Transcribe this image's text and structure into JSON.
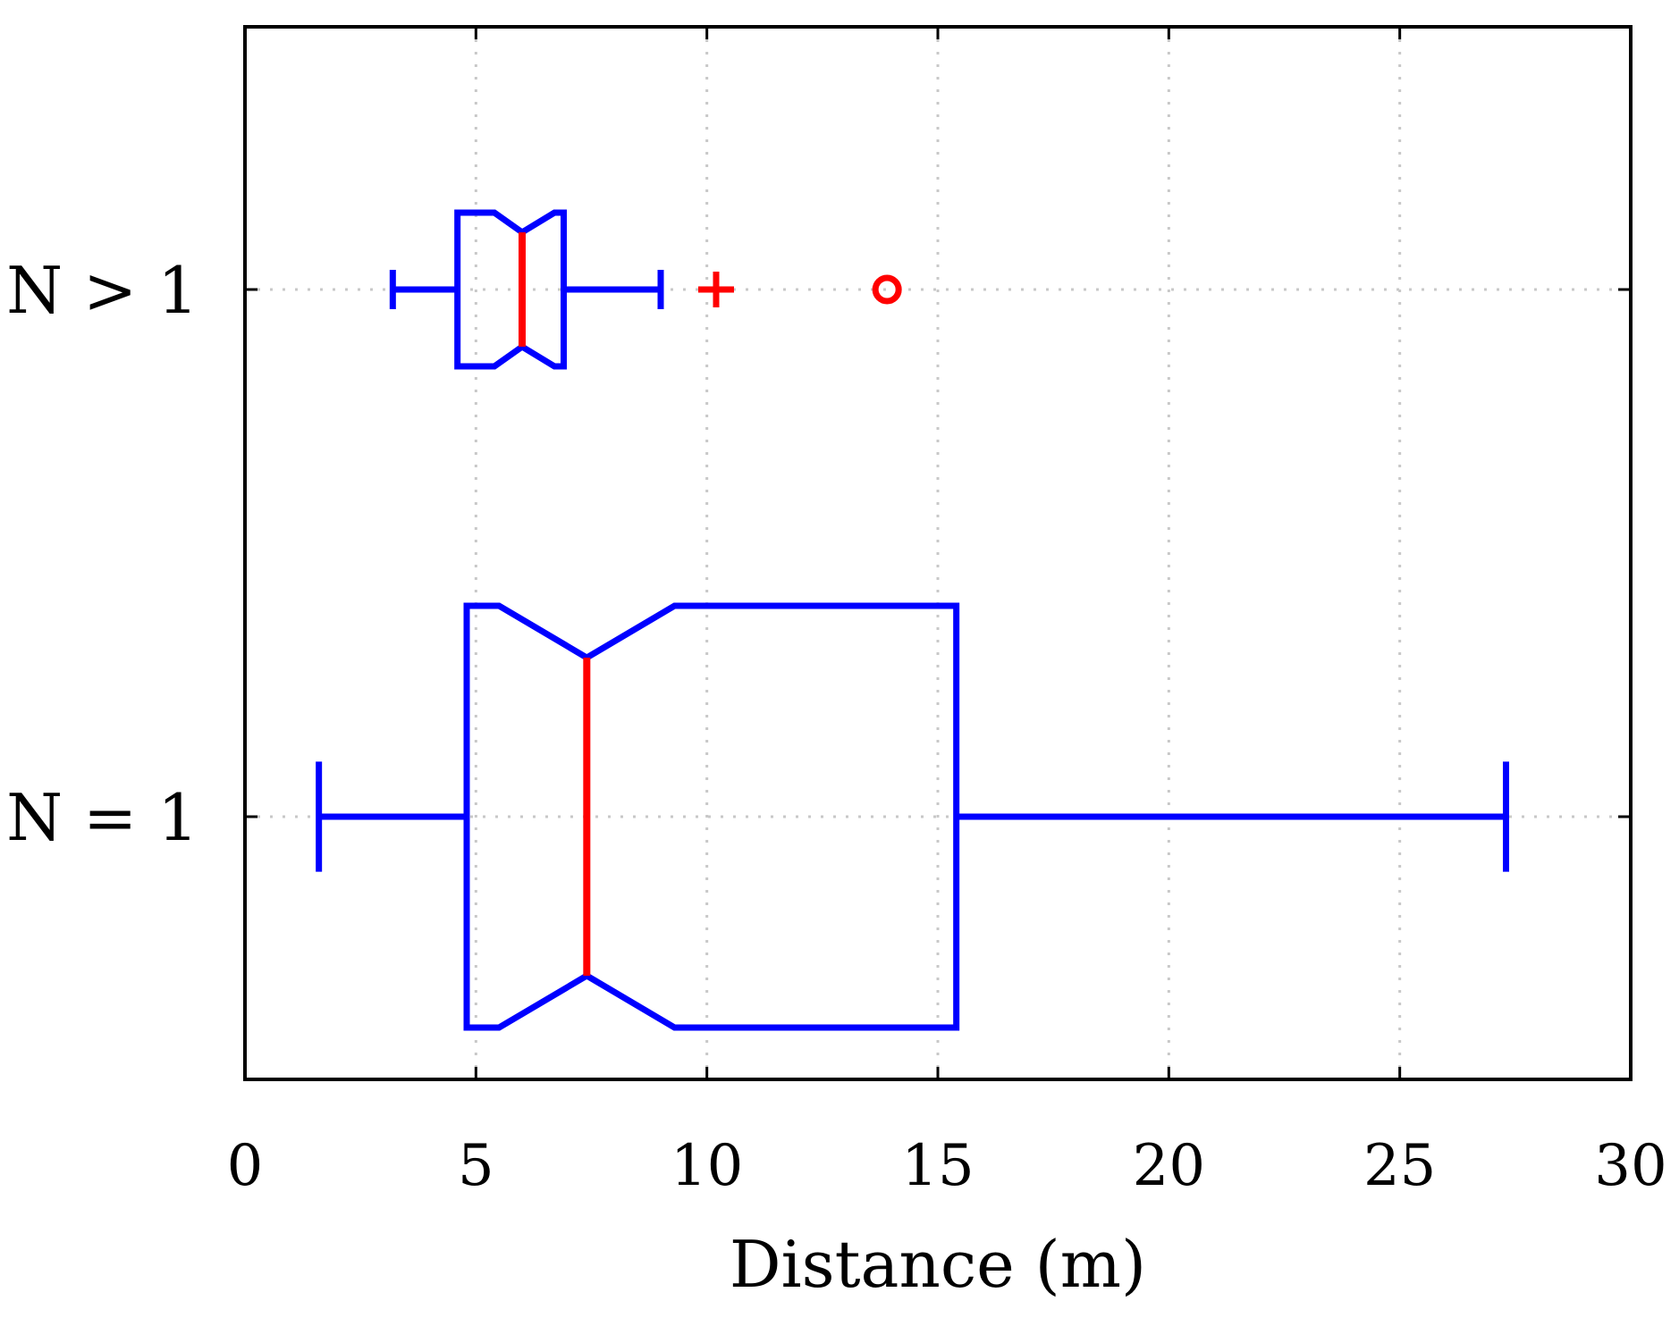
{
  "chart_data": {
    "type": "boxplot",
    "orientation": "horizontal",
    "title": "",
    "xlabel": "Distance (m)",
    "ylabel": "",
    "xlim": [
      0,
      30
    ],
    "xticks": [
      "0",
      "5",
      "10",
      "15",
      "20",
      "25",
      "30"
    ],
    "xtick_values": [
      0,
      5,
      10,
      15,
      20,
      25,
      30
    ],
    "grid": true,
    "notched": true,
    "colors": {
      "box": "#0000ff",
      "median": "#ff0000",
      "outlier": "#ff0000",
      "grid": "#c8c8c8",
      "axis": "#000000"
    },
    "categories": [
      "N > 1",
      "N = 1"
    ],
    "series": [
      {
        "name": "N > 1",
        "whisker_low": 3.2,
        "q1": 4.6,
        "notch_low": 5.4,
        "median": 6.0,
        "notch_high": 6.7,
        "q3": 6.9,
        "whisker_high": 9.0,
        "outliers": [
          {
            "value": 10.2,
            "marker": "plus"
          },
          {
            "value": 13.9,
            "marker": "circle"
          }
        ]
      },
      {
        "name": "N = 1",
        "whisker_low": 1.6,
        "q1": 4.8,
        "notch_low": 5.5,
        "median": 7.4,
        "notch_high": 9.3,
        "q3": 15.4,
        "whisker_high": 27.3,
        "outliers": []
      }
    ]
  }
}
